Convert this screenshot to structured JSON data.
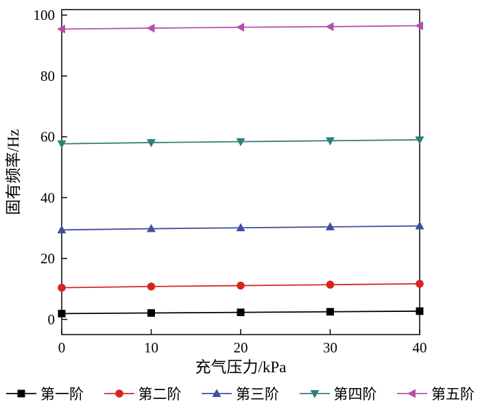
{
  "chart_data": {
    "type": "line",
    "xlabel": "充气压力/kPa",
    "ylabel": "固有频率/Hz",
    "xlim": [
      0,
      40
    ],
    "ylim": [
      0,
      100
    ],
    "xticks": [
      0,
      10,
      20,
      30,
      40
    ],
    "yticks": [
      0,
      20,
      40,
      60,
      80,
      100
    ],
    "grid": false,
    "legend_position": "bottom",
    "x": [
      0,
      10,
      20,
      30,
      40
    ],
    "series": [
      {
        "name": "第一阶",
        "marker": "square",
        "color": "#000000",
        "values": [
          1.9,
          2.1,
          2.3,
          2.5,
          2.7
        ]
      },
      {
        "name": "第二阶",
        "marker": "circle",
        "color": "#d7241d",
        "values": [
          10.4,
          10.8,
          11.1,
          11.4,
          11.7
        ]
      },
      {
        "name": "第三阶",
        "marker": "triangle-up",
        "color": "#3f4ea1",
        "values": [
          29.4,
          29.8,
          30.1,
          30.4,
          30.7
        ]
      },
      {
        "name": "第四阶",
        "marker": "triangle-down",
        "color": "#2e8077",
        "values": [
          57.7,
          58.1,
          58.4,
          58.7,
          59.0
        ]
      },
      {
        "name": "第五阶",
        "marker": "triangle-left",
        "color": "#b44fae",
        "values": [
          95.4,
          95.7,
          96.0,
          96.2,
          96.5
        ]
      }
    ]
  }
}
